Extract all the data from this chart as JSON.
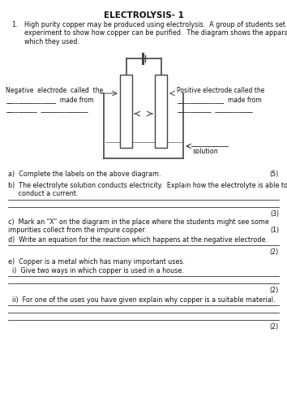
{
  "title": "ELECTROLYSIS- 1",
  "intro_num": "1.",
  "intro_text": "High purity copper may be produced using electrolysis.  A group of students set up an\nexperiment to show how copper can be purified.  The diagram shows the apparatus\nwhich they used.",
  "neg_label1": "Negative  electrode  called  the",
  "neg_label2": "________________  made from",
  "neg_label3": "__________  _______________",
  "pos_label1": "Positive electrode called the",
  "pos_label2": "_______________  made from",
  "pos_label3": "___________  ____________",
  "sol_label": "solution",
  "q_a": "a)  Complete the labels on the above diagram.",
  "q_a_marks": "(5)",
  "q_b1": "b)  The electrolyte solution conducts electricity.  Explain how the electrolyte is able to",
  "q_b2": "     conduct a current.",
  "q_b_marks": "(3)",
  "q_c1": "c)  Mark an “X” on the diagram in the place where the students might see some",
  "q_c2": "impurities collect from the impure copper.",
  "q_c_marks": "(1)",
  "q_d": "d)  Write an equation for the reaction which happens at the negative electrode.",
  "q_d_marks": "(2)",
  "q_e_intro": "e)  Copper is a metal which has many important uses.",
  "q_e_i": "  i)  Give two ways in which copper is used in a house.",
  "q_e_i_marks": "(2)",
  "q_e_ii": "  ii)  For one of the uses you have given explain why copper is a suitable material.",
  "q_e_ii_marks": "(2)",
  "bg_color": "#ffffff",
  "text_color": "#111111",
  "line_color": "#333333",
  "diagram_color": "#444444",
  "fs": 5.8,
  "fs_title": 7.5
}
